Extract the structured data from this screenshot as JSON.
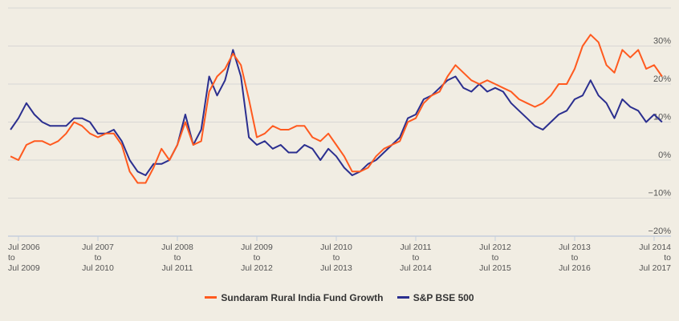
{
  "chart_data": {
    "type": "line",
    "title": "",
    "xlabel": "",
    "ylabel": "",
    "ylim": [
      -20,
      40
    ],
    "yticks": [
      40,
      30,
      20,
      10,
      0,
      -10,
      -20
    ],
    "ytick_labels": [
      "",
      "30%",
      "20%",
      "10%",
      "0%",
      "−10%",
      "−20%"
    ],
    "grid": true,
    "legend_position": "bottom",
    "x_ticks": [
      {
        "x": 2006.5,
        "line1": "Jul 2006",
        "line2": "to",
        "line3": "Jul 2009"
      },
      {
        "x": 2007.5,
        "line1": "Jul 2007",
        "line2": "to",
        "line3": "Jul 2010"
      },
      {
        "x": 2008.5,
        "line1": "Jul 2008",
        "line2": "to",
        "line3": "Jul 2011"
      },
      {
        "x": 2009.5,
        "line1": "Jul 2009",
        "line2": "to",
        "line3": "Jul 2012"
      },
      {
        "x": 2010.5,
        "line1": "Jul 2010",
        "line2": "to",
        "line3": "Jul 2013"
      },
      {
        "x": 2011.5,
        "line1": "Jul 2011",
        "line2": "to",
        "line3": "Jul 2014"
      },
      {
        "x": 2012.5,
        "line1": "Jul 2012",
        "line2": "to",
        "line3": "Jul 2015"
      },
      {
        "x": 2013.5,
        "line1": "Jul 2013",
        "line2": "to",
        "line3": "Jul 2016"
      },
      {
        "x": 2014.5,
        "line1": "Jul 2014",
        "line2": "to",
        "line3": "Jul 2017"
      }
    ],
    "x": [
      2006.4,
      2006.5,
      2006.6,
      2006.7,
      2006.8,
      2006.9,
      2007.0,
      2007.1,
      2007.2,
      2007.3,
      2007.4,
      2007.5,
      2007.6,
      2007.7,
      2007.8,
      2007.9,
      2008.0,
      2008.1,
      2008.2,
      2008.3,
      2008.4,
      2008.5,
      2008.6,
      2008.7,
      2008.8,
      2008.9,
      2009.0,
      2009.1,
      2009.2,
      2009.3,
      2009.4,
      2009.5,
      2009.6,
      2009.7,
      2009.8,
      2009.9,
      2010.0,
      2010.1,
      2010.2,
      2010.3,
      2010.4,
      2010.5,
      2010.6,
      2010.7,
      2010.8,
      2010.9,
      2011.0,
      2011.1,
      2011.2,
      2011.3,
      2011.4,
      2011.5,
      2011.6,
      2011.7,
      2011.8,
      2011.9,
      2012.0,
      2012.1,
      2012.2,
      2012.3,
      2012.4,
      2012.5,
      2012.6,
      2012.7,
      2012.8,
      2012.9,
      2013.0,
      2013.1,
      2013.2,
      2013.3,
      2013.4,
      2013.5,
      2013.6,
      2013.7,
      2013.8,
      2013.9,
      2014.0,
      2014.1,
      2014.2,
      2014.3,
      2014.4,
      2014.5,
      2014.6
    ],
    "series": [
      {
        "name": "Sundaram Rural India Fund Growth",
        "color": "#ff5a1f",
        "values": [
          1,
          0,
          4,
          5,
          5,
          4,
          5,
          7,
          10,
          9,
          7,
          6,
          7,
          7,
          4,
          -3,
          -6,
          -6,
          -2,
          3,
          0,
          4,
          10,
          4,
          5,
          18,
          22,
          24,
          28,
          25,
          16,
          6,
          7,
          9,
          8,
          8,
          9,
          9,
          6,
          5,
          7,
          4,
          1,
          -3,
          -3,
          -2,
          1,
          3,
          4,
          5,
          10,
          11,
          15,
          17,
          18,
          22,
          25,
          23,
          21,
          20,
          21,
          20,
          19,
          18,
          16,
          15,
          14,
          15,
          17,
          20,
          20,
          24,
          30,
          33,
          31,
          25,
          23,
          29,
          27,
          29,
          24,
          25,
          22
        ]
      },
      {
        "name": "S&P BSE 500",
        "color": "#2b2f8f",
        "values": [
          8,
          11,
          15,
          12,
          10,
          9,
          9,
          9,
          11,
          11,
          10,
          7,
          7,
          8,
          5,
          0,
          -3,
          -4,
          -1,
          -1,
          0,
          4,
          12,
          4,
          8,
          22,
          17,
          21,
          29,
          22,
          6,
          4,
          5,
          3,
          4,
          2,
          2,
          4,
          3,
          0,
          3,
          1,
          -2,
          -4,
          -3,
          -1,
          0,
          2,
          4,
          6,
          11,
          12,
          16,
          17,
          19,
          21,
          22,
          19,
          18,
          20,
          18,
          19,
          18,
          15,
          13,
          11,
          9,
          8,
          10,
          12,
          13,
          16,
          17,
          21,
          17,
          15,
          11,
          16,
          14,
          13,
          10,
          12,
          10
        ]
      }
    ]
  }
}
